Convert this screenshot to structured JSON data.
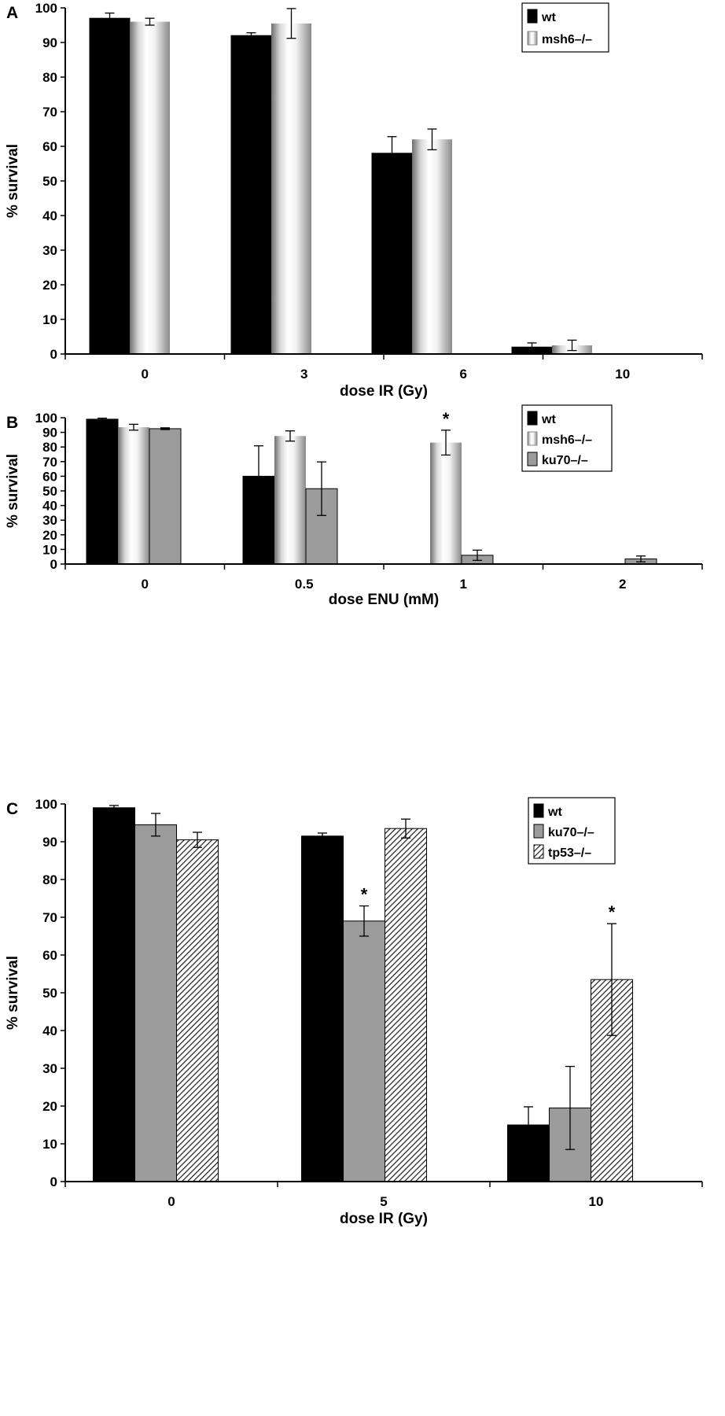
{
  "chart_data": [
    {
      "type": "bar",
      "panel": "A",
      "xlabel": "dose IR (Gy)",
      "ylabel": "% survival",
      "ylim": [
        0,
        100
      ],
      "yticks": [
        0,
        10,
        20,
        30,
        40,
        50,
        60,
        70,
        80,
        90,
        100
      ],
      "categories": [
        "0",
        "3",
        "6",
        "10"
      ],
      "legend": "top-right",
      "series": [
        {
          "name": "wt",
          "style": "black",
          "values": [
            97,
            92,
            58,
            2
          ],
          "errors": [
            1.5,
            0.8,
            4.8,
            1.2
          ]
        },
        {
          "name": "msh6–/–",
          "style": "silver",
          "values": [
            96,
            95.5,
            62,
            2.5
          ],
          "errors": [
            1,
            4.3,
            3,
            1.5
          ]
        }
      ],
      "annotations": []
    },
    {
      "type": "bar",
      "panel": "B",
      "xlabel": "dose ENU (mM)",
      "ylabel": "% survival",
      "ylim": [
        0,
        100
      ],
      "yticks": [
        0,
        10,
        20,
        30,
        40,
        50,
        60,
        70,
        80,
        90,
        100
      ],
      "categories": [
        "0",
        "0.5",
        "1",
        "2"
      ],
      "legend": "top-right",
      "series": [
        {
          "name": "wt",
          "style": "black",
          "values": [
            99,
            60,
            null,
            null
          ],
          "errors": [
            0.7,
            20.8,
            null,
            null
          ]
        },
        {
          "name": "msh6–/–",
          "style": "silver",
          "values": [
            93.5,
            87.5,
            83,
            null
          ],
          "errors": [
            2,
            3.5,
            8.5,
            null
          ]
        },
        {
          "name": "ku70–/–",
          "style": "gray",
          "values": [
            92.5,
            51.5,
            6,
            3.5
          ],
          "errors": [
            0.6,
            18.3,
            3.5,
            2
          ]
        }
      ],
      "annotations": [
        {
          "text": "*",
          "category": "1",
          "series": "msh6–/–"
        }
      ]
    },
    {
      "type": "bar",
      "panel": "C",
      "xlabel": "dose IR (Gy)",
      "ylabel": "% survival",
      "ylim": [
        0,
        100
      ],
      "yticks": [
        0,
        10,
        20,
        30,
        40,
        50,
        60,
        70,
        80,
        90,
        100
      ],
      "categories": [
        "0",
        "5",
        "10"
      ],
      "legend": "top-right",
      "series": [
        {
          "name": "wt",
          "style": "black",
          "values": [
            99,
            91.5,
            15
          ],
          "errors": [
            0.6,
            0.8,
            4.8
          ]
        },
        {
          "name": "ku70–/–",
          "style": "gray",
          "values": [
            94.5,
            69,
            19.5
          ],
          "errors": [
            3,
            4,
            11
          ]
        },
        {
          "name": "tp53–/–",
          "style": "hatch",
          "values": [
            90.5,
            93.5,
            53.5
          ],
          "errors": [
            2,
            2.5,
            14.8
          ]
        }
      ],
      "annotations": [
        {
          "text": "*",
          "category": "5",
          "series": "ku70–/–"
        },
        {
          "text": "*",
          "category": "10",
          "series": "tp53–/–"
        }
      ]
    }
  ]
}
